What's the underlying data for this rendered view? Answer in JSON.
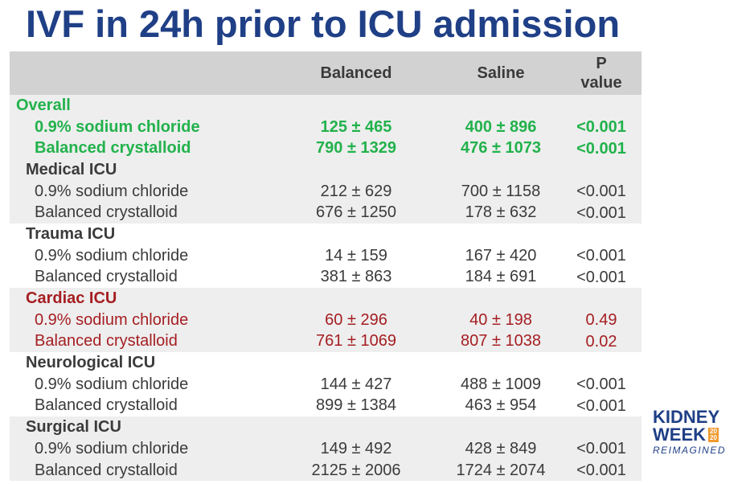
{
  "title": "IVF in 24h prior to ICU admission",
  "table": {
    "columns": {
      "label": "",
      "balanced": "Balanced",
      "saline": "Saline",
      "p_line1": "P",
      "p_line2": "value"
    },
    "sections": [
      {
        "name": "Overall",
        "rows": [
          {
            "label": "0.9% sodium chloride",
            "balanced": "125 ± 465",
            "saline": "400 ± 896",
            "p": "<0.001"
          },
          {
            "label": "Balanced crystalloid",
            "balanced": "790 ± 1329",
            "saline": "476 ± 1073",
            "p": "<0.001"
          }
        ]
      },
      {
        "name": "Medical ICU",
        "rows": [
          {
            "label": "0.9% sodium chloride",
            "balanced": "212 ± 629",
            "saline": "700 ± 1158",
            "p": "<0.001"
          },
          {
            "label": "Balanced crystalloid",
            "balanced": "676 ± 1250",
            "saline": "178 ± 632",
            "p": "<0.001"
          }
        ]
      },
      {
        "name": "Trauma ICU",
        "rows": [
          {
            "label": "0.9% sodium chloride",
            "balanced": "14 ± 159",
            "saline": "167 ± 420",
            "p": "<0.001"
          },
          {
            "label": "Balanced crystalloid",
            "balanced": "381 ± 863",
            "saline": "184 ± 691",
            "p": "<0.001"
          }
        ]
      },
      {
        "name": "Cardiac ICU",
        "rows": [
          {
            "label": "0.9% sodium chloride",
            "balanced": "60 ± 296",
            "saline": "40 ± 198",
            "p": "0.49"
          },
          {
            "label": "Balanced crystalloid",
            "balanced": "761 ± 1069",
            "saline": "807 ± 1038",
            "p": "0.02"
          }
        ]
      },
      {
        "name": "Neurological ICU",
        "rows": [
          {
            "label": "0.9% sodium chloride",
            "balanced": "144 ± 427",
            "saline": "488 ± 1009",
            "p": "<0.001"
          },
          {
            "label": "Balanced crystalloid",
            "balanced": "899 ± 1384",
            "saline": "463 ± 954",
            "p": "<0.001"
          }
        ]
      },
      {
        "name": "Surgical ICU",
        "rows": [
          {
            "label": "0.9% sodium chloride",
            "balanced": "149 ± 492",
            "saline": "428 ± 849",
            "p": "<0.001"
          },
          {
            "label": "Balanced crystalloid",
            "balanced": "2125 ± 2006",
            "saline": "1724 ± 2074",
            "p": "<0.001"
          }
        ]
      }
    ]
  },
  "logo": {
    "line1": "KIDNEY",
    "line2": "WEEK",
    "year_top": "20",
    "year_bottom": "20",
    "line3": "REIMAGINED"
  },
  "colors": {
    "title": "#1f3f86",
    "overall_highlight": "#22b24c",
    "cardiac_highlight": "#a51e22",
    "header_bg": "#d2d2d2",
    "band_grey": "#eeeeee",
    "logo_accent": "#f29a2e"
  }
}
